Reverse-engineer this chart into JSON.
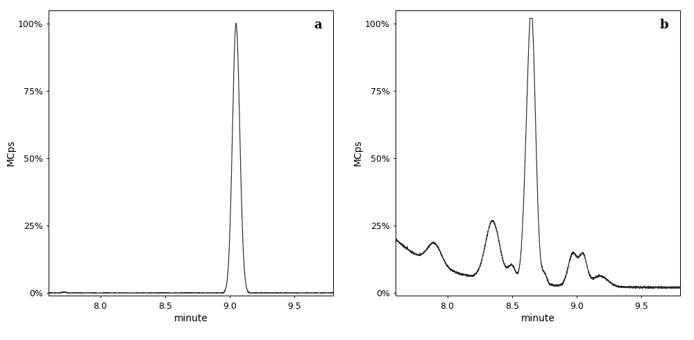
{
  "panel_a_label": "a",
  "panel_b_label": "b",
  "ylabel": "MCps",
  "xlabel": "minute",
  "yticks": [
    0,
    25,
    50,
    75,
    100
  ],
  "ytick_labels": [
    "0%",
    "25%",
    "50%",
    "75%",
    "100%"
  ],
  "xlim": [
    7.6,
    9.8
  ],
  "ylim": [
    -1,
    105
  ],
  "xticks": [
    8.0,
    8.5,
    9.0,
    9.5
  ],
  "xtick_labels": [
    "8.0",
    "8.5",
    "9.0",
    "9.5"
  ],
  "line_color": "#2a2a2a",
  "background_color": "#ffffff",
  "axes_color": "#000000",
  "font_size_ticks": 9,
  "font_size_label": 10,
  "font_size_panel": 13
}
